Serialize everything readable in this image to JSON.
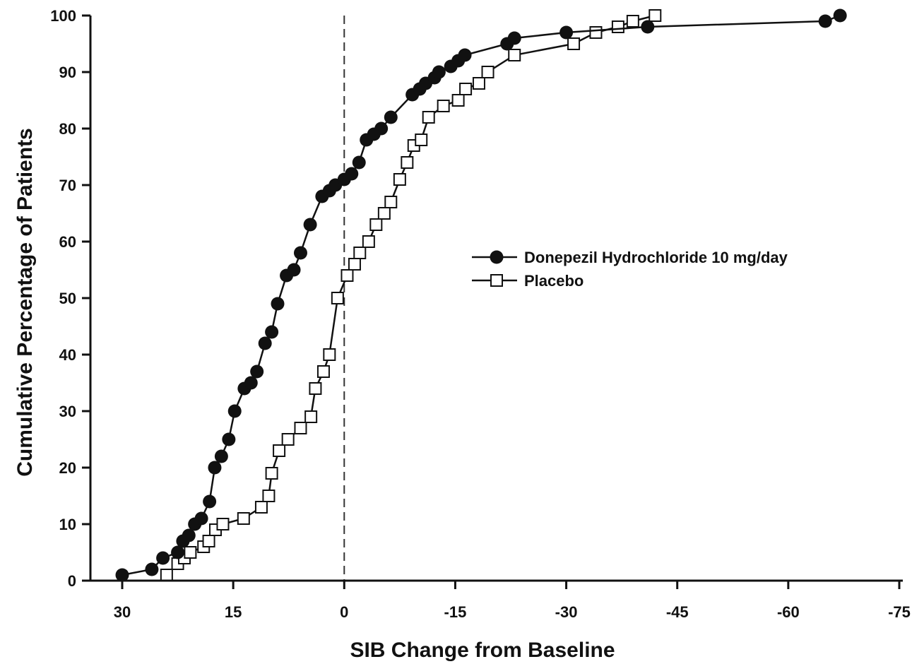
{
  "chart_data": {
    "type": "line",
    "xlabel": "SIB Change from Baseline",
    "ylabel": "Cumulative Percentage of Patients",
    "xlim": [
      30,
      -75
    ],
    "ylim": [
      0,
      100
    ],
    "x_ticks": [
      30,
      15,
      0,
      -15,
      -30,
      -45,
      -60,
      -75
    ],
    "x_tick_labels": [
      "30",
      "15",
      "0",
      "-15",
      "-30",
      "-45",
      "-60",
      "-75"
    ],
    "y_ticks": [
      0,
      10,
      20,
      30,
      40,
      50,
      60,
      70,
      80,
      90,
      100
    ],
    "y_tick_labels": [
      "0",
      "10",
      "20",
      "30",
      "40",
      "50",
      "60",
      "70",
      "80",
      "90",
      "100"
    ],
    "reference_line": {
      "x": 0,
      "style": "dashed"
    },
    "grid": false,
    "legend_position": "right-middle",
    "series": [
      {
        "name": "Donepezil Hydrochloride 10 mg/day",
        "marker": "filled-circle",
        "color": "#111111",
        "points": [
          [
            30.0,
            1
          ],
          [
            26.0,
            2
          ],
          [
            24.5,
            4
          ],
          [
            22.5,
            5
          ],
          [
            21.8,
            7
          ],
          [
            21.0,
            8
          ],
          [
            20.2,
            10
          ],
          [
            19.3,
            11
          ],
          [
            18.2,
            14
          ],
          [
            17.5,
            20
          ],
          [
            16.6,
            22
          ],
          [
            15.6,
            25
          ],
          [
            14.8,
            30
          ],
          [
            13.5,
            34
          ],
          [
            12.6,
            35
          ],
          [
            11.8,
            37
          ],
          [
            10.7,
            42
          ],
          [
            9.8,
            44
          ],
          [
            9.0,
            49
          ],
          [
            7.8,
            54
          ],
          [
            6.8,
            55
          ],
          [
            5.9,
            58
          ],
          [
            4.6,
            63
          ],
          [
            3.0,
            68
          ],
          [
            2.0,
            69
          ],
          [
            1.2,
            70
          ],
          [
            0.0,
            71
          ],
          [
            -1.0,
            72
          ],
          [
            -2.0,
            74
          ],
          [
            -3.0,
            78
          ],
          [
            -4.0,
            79
          ],
          [
            -5.0,
            80
          ],
          [
            -6.3,
            82
          ],
          [
            -9.2,
            86
          ],
          [
            -10.2,
            87
          ],
          [
            -11.0,
            88
          ],
          [
            -12.2,
            89
          ],
          [
            -12.8,
            90
          ],
          [
            -14.4,
            91
          ],
          [
            -15.4,
            92
          ],
          [
            -16.3,
            93
          ],
          [
            -22.0,
            95
          ],
          [
            -23.0,
            96
          ],
          [
            -30.0,
            97
          ],
          [
            -41.0,
            98
          ],
          [
            -65.0,
            99
          ],
          [
            -67.0,
            100
          ]
        ]
      },
      {
        "name": "Placebo",
        "marker": "open-square",
        "color": "#111111",
        "points": [
          [
            24.0,
            1
          ],
          [
            22.5,
            3
          ],
          [
            21.6,
            4
          ],
          [
            20.8,
            5
          ],
          [
            19.0,
            6
          ],
          [
            18.3,
            7
          ],
          [
            17.4,
            9
          ],
          [
            16.4,
            10
          ],
          [
            13.6,
            11
          ],
          [
            11.2,
            13
          ],
          [
            10.2,
            15
          ],
          [
            9.8,
            19
          ],
          [
            8.8,
            23
          ],
          [
            7.6,
            25
          ],
          [
            5.9,
            27
          ],
          [
            4.5,
            29
          ],
          [
            3.9,
            34
          ],
          [
            2.8,
            37
          ],
          [
            2.0,
            40
          ],
          [
            0.9,
            50
          ],
          [
            -0.4,
            54
          ],
          [
            -1.4,
            56
          ],
          [
            -2.1,
            58
          ],
          [
            -3.3,
            60
          ],
          [
            -4.3,
            63
          ],
          [
            -5.4,
            65
          ],
          [
            -6.3,
            67
          ],
          [
            -7.5,
            71
          ],
          [
            -8.5,
            74
          ],
          [
            -9.4,
            77
          ],
          [
            -10.4,
            78
          ],
          [
            -11.4,
            82
          ],
          [
            -13.4,
            84
          ],
          [
            -15.4,
            85
          ],
          [
            -16.4,
            87
          ],
          [
            -18.2,
            88
          ],
          [
            -19.4,
            90
          ],
          [
            -23.0,
            93
          ],
          [
            -31.0,
            95
          ],
          [
            -34.0,
            97
          ],
          [
            -37.0,
            98
          ],
          [
            -39.0,
            99
          ],
          [
            -42.0,
            100
          ]
        ]
      }
    ]
  }
}
